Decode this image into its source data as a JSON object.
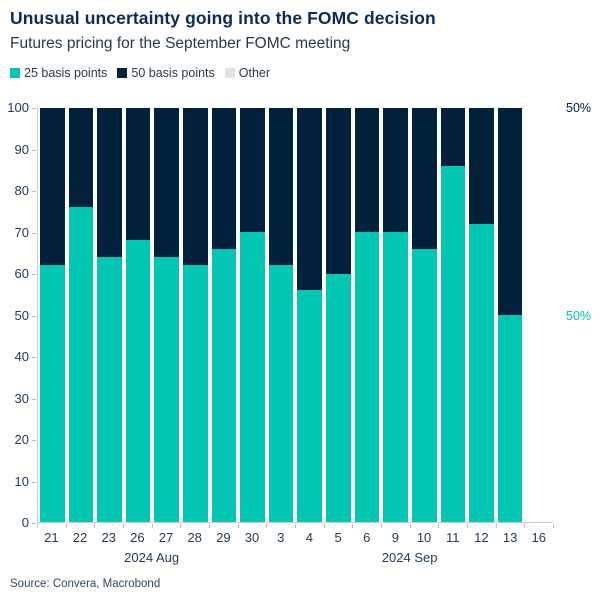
{
  "header": {
    "title": "Unusual uncertainty going into the FOMC decision",
    "subtitle": "Futures pricing for the September FOMC meeting"
  },
  "legend": [
    {
      "label": "25 basis points",
      "color": "#00c6b2"
    },
    {
      "label": "50 basis points",
      "color": "#03203c"
    },
    {
      "label": "Other",
      "color": "#e4e4e4"
    }
  ],
  "right_labels": [
    {
      "text": "50%",
      "color": "#03203c",
      "value": 100
    },
    {
      "text": "50%",
      "color": "#00c6b2",
      "value": 50
    }
  ],
  "source": "Source: Convera, Macrobond",
  "chart_data": {
    "type": "bar",
    "stacked": true,
    "title": "Unusual uncertainty going into the FOMC decision",
    "subtitle": "Futures pricing for the September FOMC meeting",
    "xlabel": "",
    "ylabel": "",
    "ylim": [
      0,
      100
    ],
    "yticks": [
      0,
      10,
      20,
      30,
      40,
      50,
      60,
      70,
      80,
      90,
      100
    ],
    "grid": false,
    "legend_position": "top-left",
    "categories": [
      "21",
      "22",
      "23",
      "26",
      "27",
      "28",
      "29",
      "30",
      "3",
      "4",
      "5",
      "6",
      "9",
      "10",
      "11",
      "12",
      "13",
      "16"
    ],
    "month_groups": [
      {
        "label": "2024 Aug",
        "start": 0,
        "end": 7
      },
      {
        "label": "2024 Sep",
        "start": 8,
        "end": 17
      }
    ],
    "series": [
      {
        "name": "25 basis points",
        "color": "#00c6b2",
        "values": [
          62,
          76,
          64,
          68,
          64,
          62,
          66,
          70,
          62,
          56,
          60,
          70,
          70,
          66,
          86,
          72,
          50,
          null
        ]
      },
      {
        "name": "50 basis points",
        "color": "#03203c",
        "values": [
          38,
          24,
          36,
          32,
          36,
          38,
          34,
          30,
          38,
          44,
          40,
          30,
          30,
          34,
          14,
          28,
          50,
          null
        ]
      },
      {
        "name": "Other",
        "color": "#e4e4e4",
        "values": [
          0,
          0,
          0,
          0,
          0,
          0,
          0,
          0,
          0,
          0,
          0,
          0,
          0,
          0,
          0,
          0,
          0,
          null
        ]
      }
    ]
  }
}
